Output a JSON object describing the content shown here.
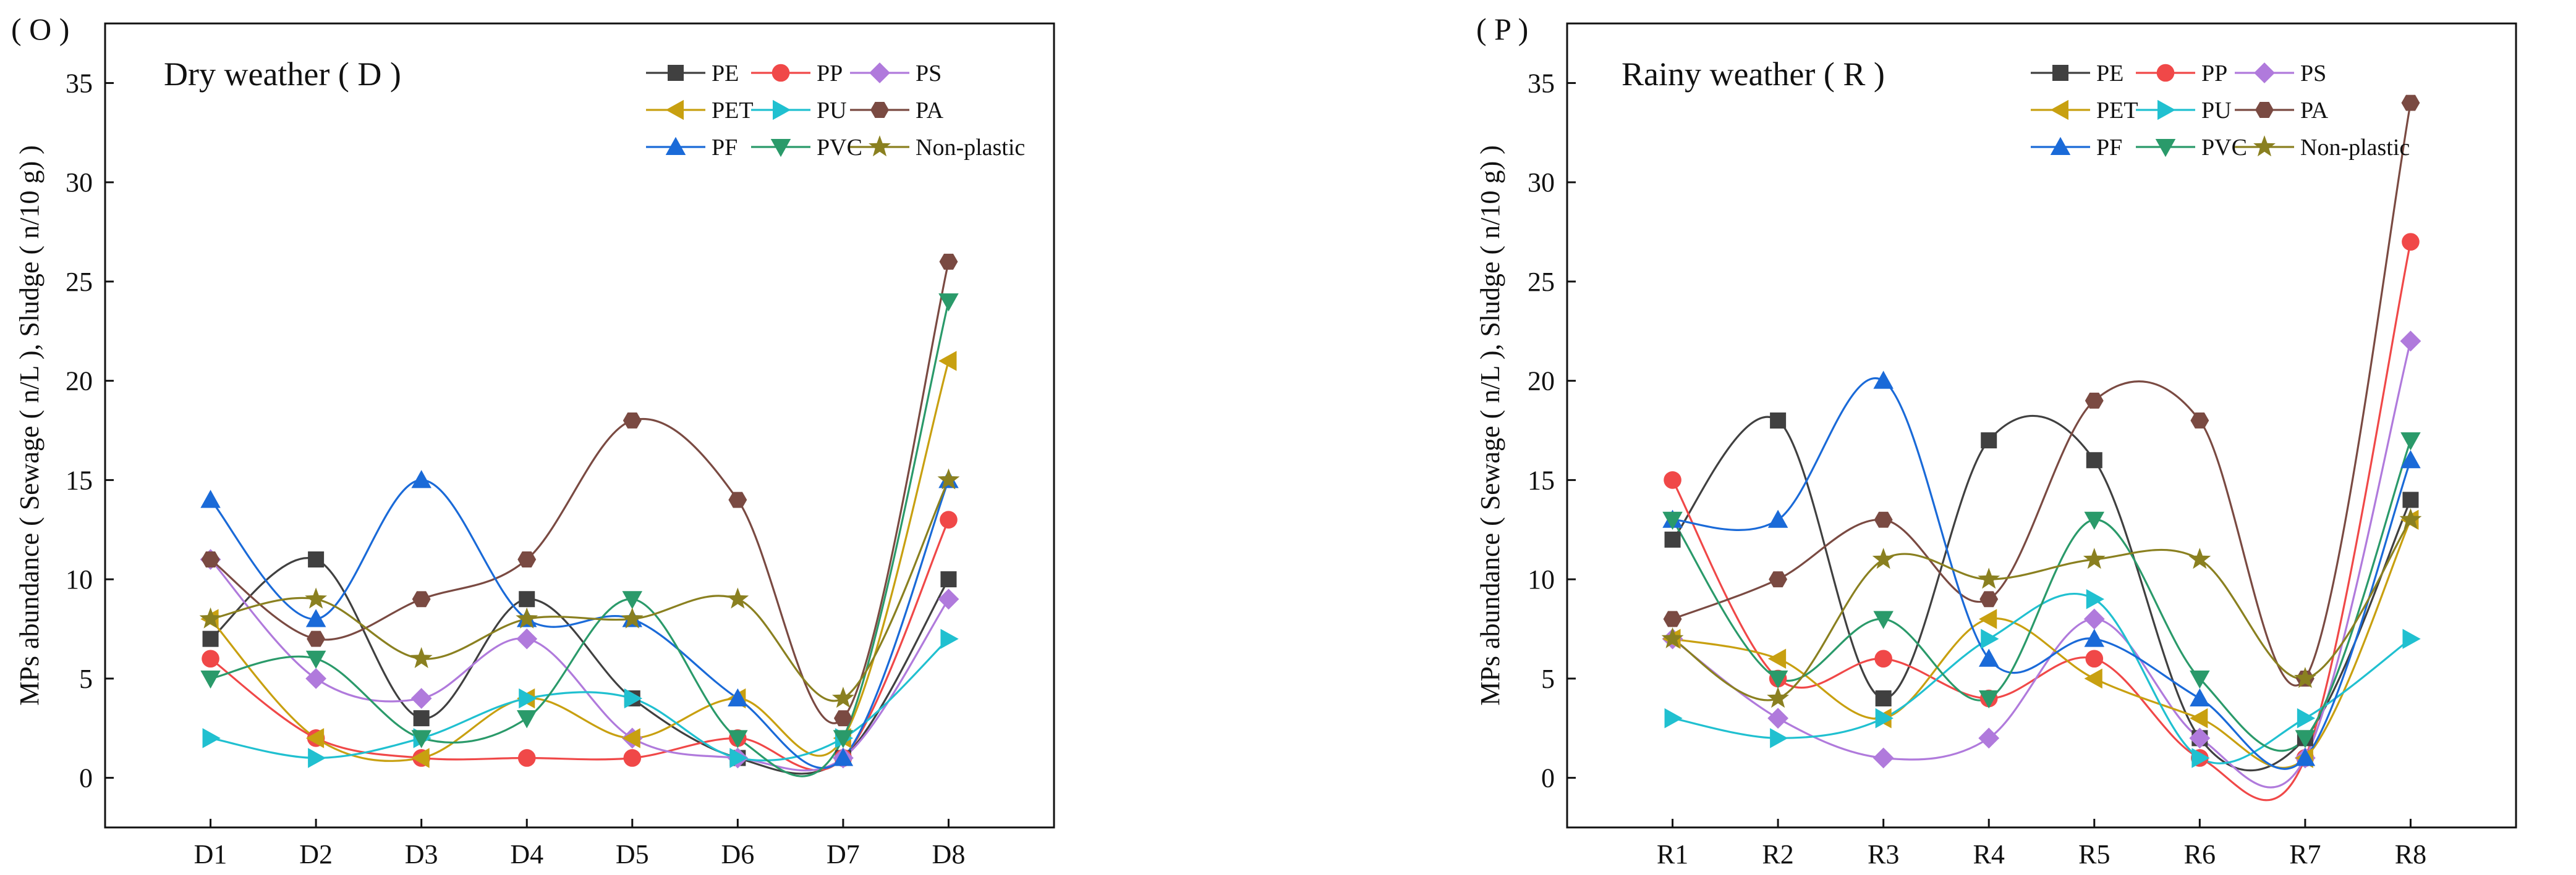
{
  "chart_data": [
    {
      "type": "line",
      "panel_letter": "( O )",
      "title": "Dry weather ( D )",
      "xlabel": "",
      "ylabel": "MPs abundance ( Sewage ( n/L ), Sludge ( n/10 g) )",
      "ylim": [
        -2.5,
        38
      ],
      "yticks": [
        "0",
        "5",
        "10",
        "15",
        "20",
        "25",
        "30",
        "35"
      ],
      "ytick_values": [
        0,
        5,
        10,
        15,
        20,
        25,
        30,
        35
      ],
      "grid": false,
      "legend_position": "top-right",
      "categories": [
        "D1",
        "D2",
        "D3",
        "D4",
        "D5",
        "D6",
        "D7",
        "D8"
      ],
      "series": [
        {
          "name": "PE",
          "color": "#404040",
          "marker": "square",
          "values": [
            7,
            11,
            3,
            9,
            4,
            1,
            1,
            10
          ]
        },
        {
          "name": "PP",
          "color": "#f04848",
          "marker": "circle",
          "values": [
            6,
            2,
            1,
            1,
            1,
            2,
            1,
            13
          ]
        },
        {
          "name": "PS",
          "color": "#b07adc",
          "marker": "diamond",
          "values": [
            11,
            5,
            4,
            7,
            2,
            1,
            1,
            9
          ]
        },
        {
          "name": "PET",
          "color": "#c8a010",
          "marker": "triangle-left",
          "values": [
            8,
            2,
            1,
            4,
            2,
            4,
            2,
            21
          ]
        },
        {
          "name": "PU",
          "color": "#20c0d0",
          "marker": "triangle-right",
          "values": [
            2,
            1,
            2,
            4,
            4,
            1,
            2,
            7
          ]
        },
        {
          "name": "PA",
          "color": "#7a4a42",
          "marker": "hexagon",
          "values": [
            11,
            7,
            9,
            11,
            18,
            14,
            3,
            26
          ]
        },
        {
          "name": "PF",
          "color": "#1a6ad8",
          "marker": "triangle-up",
          "values": [
            14,
            8,
            15,
            8,
            8,
            4,
            1,
            15
          ]
        },
        {
          "name": "PVC",
          "color": "#2a9a6a",
          "marker": "triangle-down",
          "values": [
            5,
            6,
            2,
            3,
            9,
            2,
            2,
            24
          ]
        },
        {
          "name": "Non-plastic",
          "color": "#8a8020",
          "marker": "star",
          "values": [
            8,
            9,
            6,
            8,
            8,
            9,
            4,
            15
          ]
        }
      ]
    },
    {
      "type": "line",
      "panel_letter": "( P )",
      "title": "Rainy weather ( R )",
      "xlabel": "",
      "ylabel": "MPs abundance ( Sewage ( n/L ), Sludge ( n/10 g) )",
      "ylim": [
        -2.5,
        38
      ],
      "yticks": [
        "0",
        "5",
        "10",
        "15",
        "20",
        "25",
        "30",
        "35"
      ],
      "ytick_values": [
        0,
        5,
        10,
        15,
        20,
        25,
        30,
        35
      ],
      "grid": false,
      "legend_position": "top-right",
      "categories": [
        "R1",
        "R2",
        "R3",
        "R4",
        "R5",
        "R6",
        "R7",
        "R8"
      ],
      "series": [
        {
          "name": "PE",
          "color": "#404040",
          "marker": "square",
          "values": [
            12,
            18,
            4,
            17,
            16,
            2,
            2,
            14
          ]
        },
        {
          "name": "PP",
          "color": "#f04848",
          "marker": "circle",
          "values": [
            15,
            5,
            6,
            4,
            6,
            1,
            1,
            27
          ]
        },
        {
          "name": "PS",
          "color": "#b07adc",
          "marker": "diamond",
          "values": [
            7,
            3,
            1,
            2,
            8,
            2,
            1,
            22
          ]
        },
        {
          "name": "PET",
          "color": "#c8a010",
          "marker": "triangle-left",
          "values": [
            7,
            6,
            3,
            8,
            5,
            3,
            1,
            13
          ]
        },
        {
          "name": "PU",
          "color": "#20c0d0",
          "marker": "triangle-right",
          "values": [
            3,
            2,
            3,
            7,
            9,
            1,
            3,
            7
          ]
        },
        {
          "name": "PA",
          "color": "#7a4a42",
          "marker": "hexagon",
          "values": [
            8,
            10,
            13,
            9,
            19,
            18,
            5,
            34
          ]
        },
        {
          "name": "PF",
          "color": "#1a6ad8",
          "marker": "triangle-up",
          "values": [
            13,
            13,
            20,
            6,
            7,
            4,
            1,
            16
          ]
        },
        {
          "name": "PVC",
          "color": "#2a9a6a",
          "marker": "triangle-down",
          "values": [
            13,
            5,
            8,
            4,
            13,
            5,
            2,
            17
          ]
        },
        {
          "name": "Non-plastic",
          "color": "#8a8020",
          "marker": "star",
          "values": [
            7,
            4,
            11,
            10,
            11,
            11,
            5,
            13
          ]
        }
      ]
    }
  ]
}
